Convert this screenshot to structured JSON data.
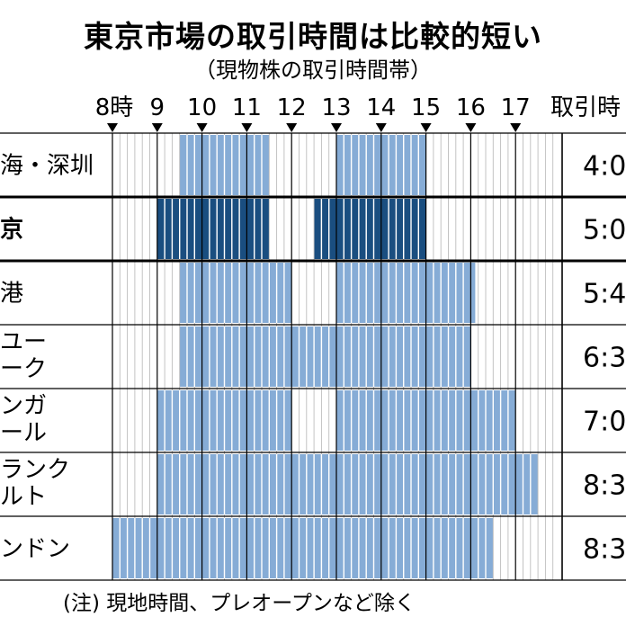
{
  "title": "東京市場の取引時間は比較的短い",
  "subtitle": "（現物株の取引時間帯）",
  "footnote": "(注) 現地時間、プレオープンなど除く",
  "colors": {
    "session": "#86acd6",
    "session_highlight": "#1a4e80",
    "grid": "#999999",
    "hour_line": "#000000",
    "stripe": "#ffffff"
  },
  "chart_data": {
    "type": "bar",
    "orientation": "horizontal-range",
    "x_unit": "時",
    "x_ticks": [
      {
        "hour": 8,
        "label": "8時"
      },
      {
        "hour": 9,
        "label": "9"
      },
      {
        "hour": 10,
        "label": "10"
      },
      {
        "hour": 11,
        "label": "11"
      },
      {
        "hour": 12,
        "label": "12"
      },
      {
        "hour": 13,
        "label": "13"
      },
      {
        "hour": 14,
        "label": "14"
      },
      {
        "hour": 15,
        "label": "15"
      },
      {
        "hour": 16,
        "label": "16"
      },
      {
        "hour": 17,
        "label": "17"
      }
    ],
    "xlim": [
      8,
      18
    ],
    "duration_header": "取引時",
    "markets": [
      {
        "label": [
          "海・深圳"
        ],
        "sessions": [
          [
            9.5,
            11.5
          ],
          [
            13,
            15
          ]
        ],
        "duration": "4:0",
        "highlight": false
      },
      {
        "label": [
          "京"
        ],
        "sessions": [
          [
            9,
            11.5
          ],
          [
            12.5,
            15
          ]
        ],
        "duration": "5:0",
        "highlight": true
      },
      {
        "label": [
          "港"
        ],
        "sessions": [
          [
            9.5,
            12
          ],
          [
            13,
            16.1
          ]
        ],
        "duration": "5:4",
        "highlight": false
      },
      {
        "label": [
          "ユー",
          "ーク"
        ],
        "sessions": [
          [
            9.5,
            16
          ]
        ],
        "duration": "6:3",
        "highlight": false
      },
      {
        "label": [
          "ンガ",
          "ール"
        ],
        "sessions": [
          [
            9,
            12
          ],
          [
            13,
            17
          ]
        ],
        "duration": "7:0",
        "highlight": false
      },
      {
        "label": [
          "ランク",
          "ルト"
        ],
        "sessions": [
          [
            9,
            17.5
          ]
        ],
        "duration": "8:3",
        "highlight": false
      },
      {
        "label": [
          "ンドン"
        ],
        "sessions": [
          [
            8,
            16.5
          ]
        ],
        "duration": "8:3",
        "highlight": false
      }
    ]
  }
}
